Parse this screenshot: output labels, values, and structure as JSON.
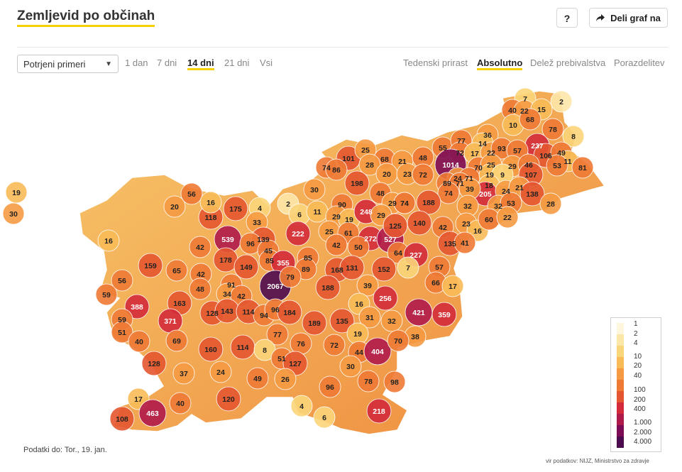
{
  "header": {
    "title": "Zemljevid po občinah",
    "help_label": "?",
    "share_label": "Deli graf na"
  },
  "controls": {
    "dataset_select": "Potrjeni primeri",
    "ranges": [
      "1 dan",
      "7 dni",
      "14 dni",
      "21 dni",
      "Vsi"
    ],
    "active_range": "14 dni",
    "modes": [
      "Tedenski prirast",
      "Absolutno",
      "Delež prebivalstva",
      "Porazdelitev"
    ],
    "active_mode": "Absolutno"
  },
  "legend": {
    "labels": [
      "1",
      "2",
      "4",
      "10",
      "20",
      "40",
      "100",
      "200",
      "400",
      "1.000",
      "2.000",
      "4.000"
    ]
  },
  "colors": {
    "accent": "#f5d000",
    "scale": [
      "#fff6de",
      "#fde7a8",
      "#fbd57a",
      "#f8bb58",
      "#f59a42",
      "#ee7a35",
      "#e45630",
      "#d32b3a",
      "#b01a4b",
      "#7d0c56",
      "#4d0b4f"
    ]
  },
  "map": {
    "values": [
      "7",
      "2",
      "40",
      "22",
      "15",
      "10",
      "68",
      "78",
      "8",
      "237",
      "106",
      "49",
      "11",
      "53",
      "81",
      "55",
      "77",
      "72",
      "36",
      "14",
      "17",
      "22",
      "93",
      "57",
      "101",
      "25",
      "74",
      "86",
      "68",
      "28",
      "21",
      "48",
      "1014",
      "70",
      "25",
      "29",
      "46",
      "107",
      "24",
      "20",
      "23",
      "72",
      "71",
      "19",
      "9",
      "30",
      "89",
      "71",
      "198",
      "48",
      "74",
      "18",
      "205",
      "24",
      "21",
      "138",
      "28",
      "29",
      "74",
      "188",
      "39",
      "32",
      "53",
      "2",
      "6",
      "11",
      "90",
      "29",
      "19",
      "248",
      "29",
      "74",
      "32",
      "23",
      "16",
      "60",
      "22",
      "19",
      "30",
      "16",
      "20",
      "56",
      "118",
      "16",
      "175",
      "4",
      "33",
      "222",
      "25",
      "61",
      "272",
      "527",
      "125",
      "140",
      "42",
      "135",
      "41",
      "42",
      "539",
      "139",
      "96",
      "45",
      "85",
      "355",
      "85",
      "89",
      "42",
      "50",
      "64",
      "227",
      "159",
      "178",
      "149",
      "168",
      "131",
      "152",
      "7",
      "57",
      "65",
      "42",
      "2067",
      "79",
      "188",
      "66",
      "17",
      "56",
      "48",
      "39",
      "59",
      "91",
      "34",
      "42",
      "256",
      "163",
      "128",
      "143",
      "114",
      "94",
      "96",
      "184",
      "16",
      "421",
      "359",
      "388",
      "371",
      "189",
      "135",
      "31",
      "32",
      "59",
      "51",
      "69",
      "77",
      "19",
      "38",
      "40",
      "114",
      "8",
      "76",
      "72",
      "44",
      "404",
      "70",
      "160",
      "51",
      "127",
      "128",
      "37",
      "24",
      "30",
      "49",
      "26",
      "96",
      "78",
      "98",
      "120",
      "17",
      "40",
      "4",
      "463",
      "218",
      "108",
      "6"
    ],
    "source": "vir podatkov: NIJZ, Ministrstvo za zdravje"
  },
  "footer": {
    "updated": "Podatki do: Tor., 19. jan."
  }
}
